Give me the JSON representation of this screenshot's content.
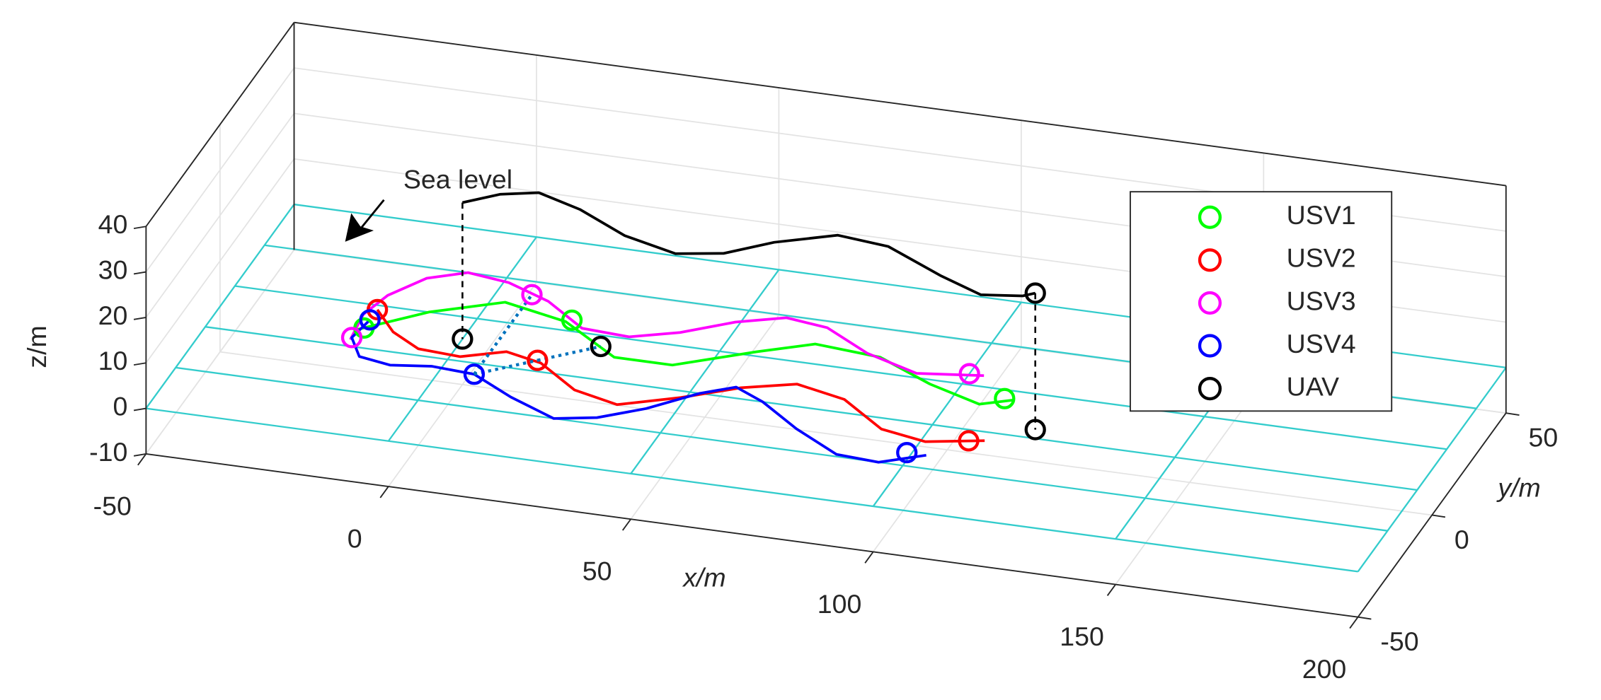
{
  "chart_data": {
    "type": "line3d",
    "xlabel": "x/m",
    "ylabel": "y/m",
    "zlabel": "z/m",
    "annotation": "Sea level",
    "xlim": [
      -50,
      200
    ],
    "ylim": [
      -50,
      50
    ],
    "zlim": [
      -10,
      40
    ],
    "xticks": [
      -50,
      0,
      50,
      100,
      150,
      200
    ],
    "yticks": [
      -50,
      0,
      50
    ],
    "zticks": [
      -10,
      0,
      10,
      20,
      30,
      40
    ],
    "grid": true,
    "legend": "east",
    "sea_plane": {
      "z": 0,
      "x": [
        -50,
        0,
        50,
        100,
        150,
        200
      ],
      "y": [
        -50,
        -30,
        -10,
        10,
        30,
        50
      ],
      "color": "#33cccc"
    },
    "series": [
      {
        "name": "USV1",
        "color": "#00ff00",
        "x": [
          -21,
          -10,
          3,
          17,
          31,
          43,
          57,
          67,
          81,
          94,
          106,
          112
        ],
        "y": [
          -2,
          10,
          19,
          14,
          1,
          1,
          12,
          19,
          17,
          8,
          2,
          6
        ],
        "z": [
          0,
          0,
          0,
          0,
          0,
          0,
          0,
          0,
          0,
          0,
          0,
          0
        ],
        "markers": [
          [
            -20,
            -1,
            0
          ],
          [
            18,
            15,
            0
          ],
          [
            110,
            6,
            0
          ]
        ]
      },
      {
        "name": "USV2",
        "color": "#ff0000",
        "x": [
          -20,
          -14,
          -7,
          2,
          10,
          18,
          28,
          38,
          49,
          59,
          69,
          80,
          91,
          101,
          112
        ],
        "y": [
          8,
          -1,
          -7,
          -8,
          -3,
          -6,
          -16,
          -20,
          -13,
          -5,
          0,
          -4,
          -15,
          -18,
          -14
        ],
        "z": [
          0,
          0,
          0,
          0,
          0,
          0,
          0,
          0,
          0,
          0,
          0,
          0,
          0,
          0,
          0
        ],
        "markers": [
          [
            -20,
            8,
            0
          ],
          [
            17,
            -5,
            0
          ],
          [
            109,
            -15,
            0
          ]
        ]
      },
      {
        "name": "USV3",
        "color": "#ff00ff",
        "x": [
          -21,
          -22,
          -20,
          -15,
          -8,
          1,
          11,
          21,
          31,
          40,
          49,
          58,
          67,
          78,
          90,
          103
        ],
        "y": [
          -7,
          5,
          15,
          25,
          30,
          28,
          22,
          12,
          11,
          16,
          24,
          29,
          27,
          18,
          12,
          15
        ],
        "z": [
          0,
          0,
          0,
          0,
          0,
          0,
          0,
          0,
          0,
          0,
          0,
          0,
          0,
          0,
          0,
          0
        ],
        "markers": [
          [
            -21,
            -6,
            0
          ],
          [
            7,
            24,
            0
          ],
          [
            100,
            15,
            0
          ]
        ]
      },
      {
        "name": "USV4",
        "color": "#0000ff",
        "x": [
          -20,
          -21,
          -17,
          -10,
          -2,
          7,
          17,
          28,
          36,
          44,
          52,
          58,
          65,
          75,
          86,
          95,
          103
        ],
        "y": [
          3,
          -6,
          -14,
          -16,
          -14,
          -15,
          -23,
          -30,
          -27,
          -20,
          -10,
          -5,
          -10,
          -20,
          -29,
          -30,
          -24
        ],
        "z": [
          0,
          0,
          0,
          0,
          0,
          0,
          0,
          0,
          0,
          0,
          0,
          0,
          0,
          0,
          0,
          0,
          0
        ],
        "markers": [
          [
            -20,
            3,
            0
          ],
          [
            7,
            -15,
            0
          ],
          [
            99,
            -24,
            0
          ]
        ]
      },
      {
        "name": "UAV",
        "color": "#000000",
        "x": [
          0,
          6,
          13,
          23,
          35,
          47,
          56,
          64,
          75,
          86,
          100,
          110,
          118,
          120
        ],
        "y": [
          0,
          6,
          9,
          4,
          -5,
          -10,
          -7,
          1,
          8,
          6,
          -4,
          -10,
          -8,
          -6
        ],
        "z": [
          30,
          30,
          30,
          30,
          30,
          30,
          30,
          30,
          30,
          30,
          30,
          30,
          30,
          30
        ],
        "markers": [
          [
            0,
            0,
            0
          ],
          [
            27,
            5,
            0
          ],
          [
            120,
            -6,
            30
          ],
          [
            120,
            -6,
            0
          ]
        ]
      }
    ]
  }
}
